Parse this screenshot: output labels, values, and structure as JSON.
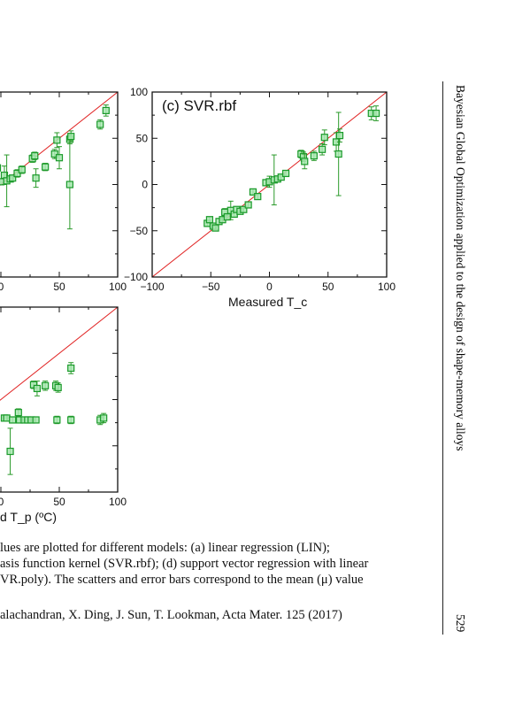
{
  "running_head": {
    "title": "Bayesian Global Optimization applied to the design of shape-memory alloys",
    "page_number": "529"
  },
  "caption": {
    "lines": [
      "lues are plotted for different models: (a) linear regression (LIN);",
      "asis function kernel (SVR.rbf); (d) support vector regression with linear",
      "VR.poly). The scatters and error bars correspond to the mean (μ) value"
    ]
  },
  "footnote": "alachandran, X. Ding, J. Sun, T. Lookman, Acta Mater. 125 (2017)",
  "colors": {
    "marker_edge": "#1a9a2a",
    "marker_fill": "#a8e8b0",
    "diagonal": "#e02020",
    "errorbar": "#2a9a2a"
  },
  "chart_data": [
    {
      "type": "scatter",
      "panel": "partial top-left (cropped)",
      "title": "",
      "xlabel": "",
      "ylabel": "",
      "xlim": [
        -100,
        100
      ],
      "ylim": [
        -100,
        100
      ],
      "x_tick_labels_visible": [
        "0",
        "50",
        "100"
      ],
      "diagonal": true,
      "points": [
        {
          "x": -3,
          "y": 18,
          "e": 4
        },
        {
          "x": 0,
          "y": 3,
          "e": 3
        },
        {
          "x": 3,
          "y": 10,
          "e": 10
        },
        {
          "x": 5,
          "y": 4,
          "e": 28
        },
        {
          "x": 8,
          "y": 6,
          "e": 3
        },
        {
          "x": 10,
          "y": 7,
          "e": 3
        },
        {
          "x": 14,
          "y": 12,
          "e": 4
        },
        {
          "x": 18,
          "y": 16,
          "e": 4
        },
        {
          "x": 27,
          "y": 28,
          "e": 4
        },
        {
          "x": 29,
          "y": 31,
          "e": 4
        },
        {
          "x": 30,
          "y": 7,
          "e": 10
        },
        {
          "x": 38,
          "y": 19,
          "e": 4
        },
        {
          "x": 46,
          "y": 33,
          "e": 5
        },
        {
          "x": 48,
          "y": 48,
          "e": 8
        },
        {
          "x": 50,
          "y": 29,
          "e": 12
        },
        {
          "x": 59,
          "y": 49,
          "e": 5
        },
        {
          "x": 60,
          "y": 52,
          "e": 6
        },
        {
          "x": 59,
          "y": 0,
          "e": 48
        },
        {
          "x": 85,
          "y": 65,
          "e": 5
        },
        {
          "x": 90,
          "y": 80,
          "e": 6
        }
      ]
    },
    {
      "type": "scatter",
      "panel": "(c)",
      "title": "(c) SVR.rbf",
      "xlabel": "Measured T_c",
      "ylabel": "",
      "xlim": [
        -100,
        100
      ],
      "ylim": [
        -100,
        100
      ],
      "x_tick_labels": [
        "−100",
        "−50",
        "0",
        "50",
        "100"
      ],
      "y_tick_labels": [
        "100",
        "50",
        "0",
        "−50",
        "−100"
      ],
      "diagonal": true,
      "points": [
        {
          "x": -53,
          "y": -42,
          "e": 3
        },
        {
          "x": -51,
          "y": -38,
          "e": 3
        },
        {
          "x": -48,
          "y": -45,
          "e": 2
        },
        {
          "x": -46,
          "y": -47,
          "e": 2
        },
        {
          "x": -43,
          "y": -40,
          "e": 3
        },
        {
          "x": -40,
          "y": -38,
          "e": 3
        },
        {
          "x": -38,
          "y": -30,
          "e": 4
        },
        {
          "x": -36,
          "y": -35,
          "e": 3
        },
        {
          "x": -33,
          "y": -28,
          "e": 10
        },
        {
          "x": -30,
          "y": -32,
          "e": 3
        },
        {
          "x": -28,
          "y": -27,
          "e": 3
        },
        {
          "x": -25,
          "y": -29,
          "e": 3
        },
        {
          "x": -22,
          "y": -27,
          "e": 3
        },
        {
          "x": -18,
          "y": -22,
          "e": 3
        },
        {
          "x": -14,
          "y": -8,
          "e": 3
        },
        {
          "x": -10,
          "y": -13,
          "e": 3
        },
        {
          "x": -3,
          "y": 2,
          "e": 3
        },
        {
          "x": 0,
          "y": 3,
          "e": 6
        },
        {
          "x": 4,
          "y": 5,
          "e": 27
        },
        {
          "x": 7,
          "y": 6,
          "e": 3
        },
        {
          "x": 10,
          "y": 8,
          "e": 3
        },
        {
          "x": 14,
          "y": 12,
          "e": 3
        },
        {
          "x": 27,
          "y": 33,
          "e": 4
        },
        {
          "x": 29,
          "y": 30,
          "e": 5
        },
        {
          "x": 30,
          "y": 25,
          "e": 8
        },
        {
          "x": 38,
          "y": 31,
          "e": 5
        },
        {
          "x": 45,
          "y": 38,
          "e": 6
        },
        {
          "x": 47,
          "y": 51,
          "e": 8
        },
        {
          "x": 57,
          "y": 46,
          "e": 10
        },
        {
          "x": 59,
          "y": 33,
          "e": 45
        },
        {
          "x": 60,
          "y": 53,
          "e": 7
        },
        {
          "x": 87,
          "y": 77,
          "e": 7
        },
        {
          "x": 91,
          "y": 77,
          "e": 8
        }
      ]
    },
    {
      "type": "scatter",
      "panel": "partial bottom-left (cropped)",
      "title": "",
      "xlabel": "d T_p (ºC)",
      "ylabel": "",
      "xlim": [
        -100,
        100
      ],
      "ylim": [
        -100,
        100
      ],
      "x_tick_labels_visible": [
        "0",
        "50",
        "100"
      ],
      "diagonal": true,
      "points": [
        {
          "x": -5,
          "y": 0,
          "e": 3
        },
        {
          "x": -5,
          "y": -20,
          "e": 3
        },
        {
          "x": 3,
          "y": -20,
          "e": 3
        },
        {
          "x": 5,
          "y": -20,
          "e": 3
        },
        {
          "x": 8,
          "y": -56,
          "e": 25
        },
        {
          "x": 10,
          "y": -22,
          "e": 3
        },
        {
          "x": 15,
          "y": -14,
          "e": 4
        },
        {
          "x": 16,
          "y": -22,
          "e": 3
        },
        {
          "x": 20,
          "y": -22,
          "e": 3
        },
        {
          "x": 23,
          "y": -22,
          "e": 3
        },
        {
          "x": 26,
          "y": -22,
          "e": 3
        },
        {
          "x": 28,
          "y": 16,
          "e": 4
        },
        {
          "x": 30,
          "y": -22,
          "e": 3
        },
        {
          "x": 31,
          "y": 12,
          "e": 8
        },
        {
          "x": 38,
          "y": 15,
          "e": 5
        },
        {
          "x": 47,
          "y": 15,
          "e": 5
        },
        {
          "x": 48,
          "y": -22,
          "e": 4
        },
        {
          "x": 49,
          "y": 13,
          "e": 5
        },
        {
          "x": 60,
          "y": 34,
          "e": 6
        },
        {
          "x": 60,
          "y": -22,
          "e": 4
        },
        {
          "x": 85,
          "y": -22,
          "e": 5
        },
        {
          "x": 88,
          "y": -20,
          "e": 5
        }
      ]
    }
  ]
}
